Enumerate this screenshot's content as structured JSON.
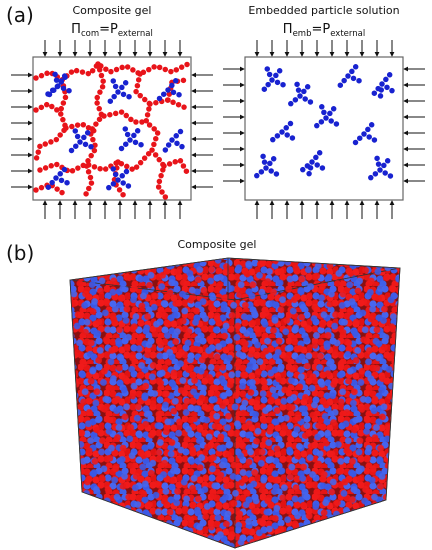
{
  "panel_a": {
    "label": "(a)",
    "left": {
      "title": "Composite gel",
      "equation": {
        "symbol": "Π",
        "sub": "com",
        "eq": "=P",
        "sub2": "external"
      }
    },
    "right": {
      "title": "Embedded particle solution",
      "equation": {
        "symbol": "Π",
        "sub": "emb",
        "eq": "=P",
        "sub2": "external"
      }
    }
  },
  "panel_b": {
    "label": "(b)",
    "title": "Composite gel"
  }
}
